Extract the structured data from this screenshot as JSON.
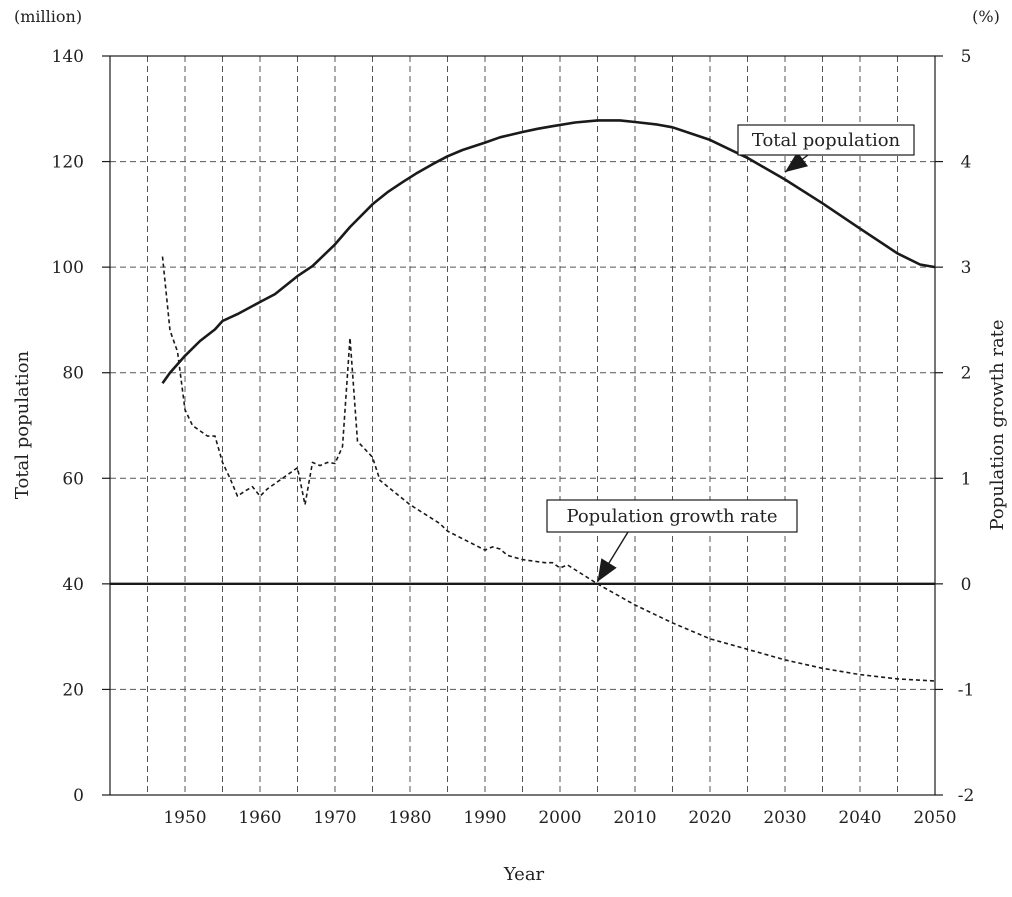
{
  "chart_data": {
    "type": "line",
    "xlabel": "Year",
    "ylabel_left": "Total population",
    "ylabel_right": "Population growth rate",
    "unit_left": "(million)",
    "unit_right": "(%)",
    "xlim": [
      1940,
      2050
    ],
    "xticks": [
      1950,
      1960,
      1970,
      1980,
      1990,
      2000,
      2010,
      2020,
      2030,
      2040,
      2050
    ],
    "x_minor_grid_step": 5,
    "ylim_left": [
      0,
      140
    ],
    "yticks_left": [
      0,
      20,
      40,
      60,
      80,
      100,
      120,
      140
    ],
    "ylim_right": [
      -2,
      5
    ],
    "yticks_right": [
      -2,
      -1,
      0,
      1,
      2,
      3,
      4,
      5
    ],
    "grid": true,
    "grid_style": "dashed",
    "colors": {
      "line": "#1a1a1a",
      "grid": "#555555",
      "background": "#ffffff"
    },
    "series": [
      {
        "name": "Total population",
        "axis": "left",
        "style": "solid",
        "x": [
          1947,
          1948,
          1950,
          1952,
          1954,
          1955,
          1957,
          1960,
          1962,
          1965,
          1967,
          1970,
          1972,
          1975,
          1977,
          1979,
          1981,
          1983,
          1985,
          1987,
          1990,
          1992,
          1995,
          1997,
          1999,
          2002,
          2005,
          2008,
          2010,
          2013,
          2015,
          2020,
          2025,
          2030,
          2035,
          2040,
          2045,
          2048,
          2050
        ],
        "values": [
          78.0,
          80.0,
          83.2,
          86.0,
          88.2,
          89.8,
          91.1,
          93.4,
          94.9,
          98.3,
          100.2,
          104.3,
          107.6,
          111.9,
          114.2,
          116.1,
          117.9,
          119.5,
          121.0,
          122.2,
          123.6,
          124.6,
          125.6,
          126.2,
          126.7,
          127.4,
          127.8,
          127.8,
          127.5,
          127.0,
          126.5,
          124.1,
          120.7,
          116.6,
          112.1,
          107.3,
          102.6,
          100.5,
          100.0
        ]
      },
      {
        "name": "Population growth rate",
        "axis": "right",
        "style": "dashed",
        "x": [
          1947,
          1948,
          1949,
          1950,
          1951,
          1953,
          1954,
          1955,
          1956,
          1957,
          1958,
          1959,
          1960,
          1961,
          1963,
          1965,
          1966,
          1967,
          1968,
          1969,
          1970,
          1971,
          1972,
          1973,
          1975,
          1976,
          1980,
          1984,
          1985,
          1990,
          1991,
          1992,
          1993,
          1995,
          1998,
          1999,
          2000,
          2001,
          2005,
          2010,
          2015,
          2020,
          2025,
          2030,
          2035,
          2040,
          2045,
          2050
        ],
        "values": [
          3.1,
          2.4,
          2.2,
          1.65,
          1.5,
          1.4,
          1.4,
          1.15,
          1.0,
          0.83,
          0.88,
          0.92,
          0.83,
          0.9,
          1.0,
          1.1,
          0.75,
          1.15,
          1.12,
          1.15,
          1.14,
          1.3,
          2.33,
          1.35,
          1.2,
          0.98,
          0.75,
          0.57,
          0.5,
          0.32,
          0.35,
          0.33,
          0.27,
          0.23,
          0.2,
          0.2,
          0.15,
          0.18,
          0.0,
          -0.2,
          -0.37,
          -0.52,
          -0.62,
          -0.72,
          -0.8,
          -0.86,
          -0.9,
          -0.92
        ]
      }
    ],
    "annotations": [
      {
        "text": "Total population",
        "x": 2030,
        "y": 118,
        "axis": "left"
      },
      {
        "text": "Population growth rate",
        "x": 2005,
        "y": 0.02,
        "axis": "right"
      }
    ]
  }
}
